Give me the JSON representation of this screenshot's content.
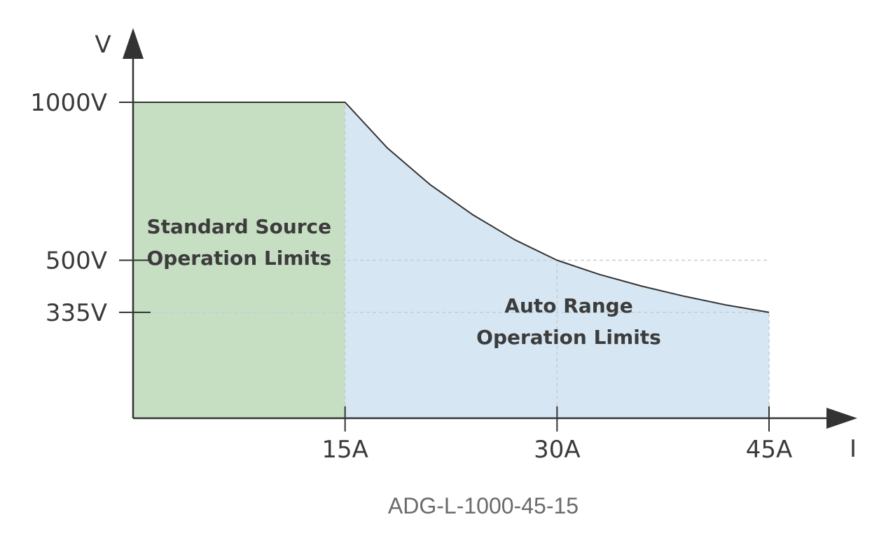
{
  "chart_data": {
    "type": "area",
    "caption": "ADG-L-1000-45-15",
    "xlabel": "I",
    "ylabel": "V",
    "xlim": [
      0,
      50
    ],
    "ylim": [
      0,
      1120
    ],
    "x_ticks": [
      {
        "value": 15,
        "label": "15A"
      },
      {
        "value": 30,
        "label": "30A"
      },
      {
        "value": 45,
        "label": "45A"
      }
    ],
    "y_ticks": [
      {
        "value": 1000,
        "label": "1000V"
      },
      {
        "value": 500,
        "label": "500V"
      },
      {
        "value": 335,
        "label": "335V"
      }
    ],
    "regions": [
      {
        "name": "Standard Source Operation Limits",
        "label_lines": [
          "Standard Source",
          "Operation Limits"
        ],
        "color": "#c6dfc2",
        "x": [
          0,
          15
        ],
        "y": [
          1000,
          1000
        ]
      },
      {
        "name": "Auto Range Operation Limits",
        "label_lines": [
          "Auto Range",
          "Operation Limits"
        ],
        "color": "#d6e7f3",
        "x": [
          15,
          18,
          21,
          24,
          27,
          30,
          33,
          36,
          39,
          42,
          45
        ],
        "y": [
          1000,
          855,
          740,
          645,
          565,
          500,
          455,
          418,
          386,
          358,
          335
        ]
      }
    ],
    "grid": "dashed guides at ticks",
    "line_color": "#333333"
  }
}
